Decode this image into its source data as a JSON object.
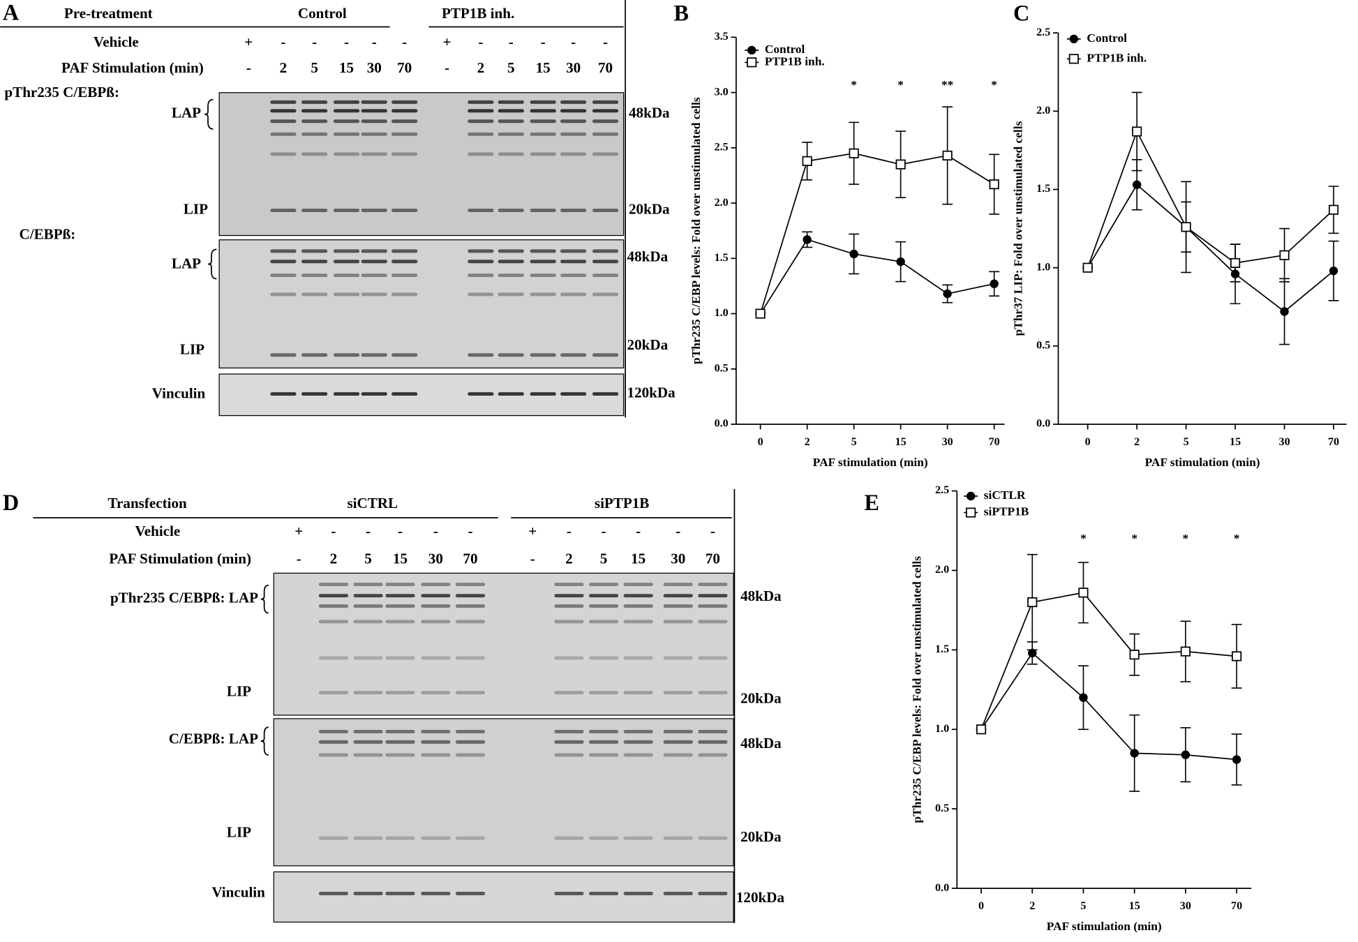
{
  "panel_a": {
    "letter": "A",
    "header": "Pre-treatment",
    "groups": [
      "Control",
      "PTP1B inh."
    ],
    "vehicle_label": "Vehicle",
    "vehicle": [
      "+",
      "-",
      "-",
      "-",
      "-",
      "-",
      "+",
      "-",
      "-",
      "-",
      "-",
      "-"
    ],
    "stimulation_label": "PAF Stimulation (min)",
    "stimulation": [
      "-",
      "2",
      "5",
      "15",
      "30",
      "70",
      "-",
      "2",
      "5",
      "15",
      "30",
      "70"
    ],
    "blot_labels": [
      "pThr235 C/EBPß:",
      "LAP",
      "LIP",
      "C/EBPß:",
      "LAP",
      "LIP",
      "Vinculin"
    ],
    "markers": [
      "48kDa",
      "20kDa",
      "48kDa",
      "20kDa",
      "120kDa"
    ]
  },
  "panel_d": {
    "letter": "D",
    "header": "Transfection",
    "groups": [
      "siCTRL",
      "siPTP1B"
    ],
    "vehicle_label": "Vehicle",
    "vehicle": [
      "+",
      "-",
      "-",
      "-",
      "-",
      "-",
      "+",
      "-",
      "-",
      "-",
      "-",
      "-"
    ],
    "stimulation_label": "PAF Stimulation (min)",
    "stimulation": [
      "-",
      "2",
      "5",
      "15",
      "30",
      "70",
      "-",
      "2",
      "5",
      "15",
      "30",
      "70"
    ],
    "blot_labels": [
      "pThr235 C/EBPß: LAP",
      "LIP",
      "C/EBPß: LAP",
      "LIP",
      "Vinculin"
    ],
    "markers": [
      "48kDa",
      "20kDa",
      "48kDa",
      "20kDa",
      "120kDa"
    ]
  },
  "chart_data": [
    {
      "type": "line",
      "panel": "B",
      "x_label": "PAF stimulation (min)",
      "y_label": "pThr235 C/EBP  levels:  Fold over unstimulated cells",
      "categories": [
        "0",
        "2",
        "5",
        "15",
        "30",
        "70"
      ],
      "legend": "upper left",
      "ylim": [
        0,
        3.5
      ],
      "yticks": [
        {
          "value": 0,
          "label": "0.0"
        },
        {
          "value": 0.5,
          "label": "0.5"
        },
        {
          "value": 1,
          "label": "1.0"
        },
        {
          "value": 1.5,
          "label": "1.5"
        },
        {
          "value": 2,
          "label": "2.0"
        },
        {
          "value": 2.5,
          "label": "2.5"
        },
        {
          "value": 3,
          "label": "3.0"
        },
        {
          "value": 3.5,
          "label": "3.5"
        }
      ],
      "series": [
        {
          "name": "Control",
          "color": "#000000",
          "marker": "circle",
          "values": [
            1.0,
            1.67,
            1.54,
            1.47,
            1.18,
            1.27
          ],
          "errors": [
            0,
            0.07,
            0.18,
            0.18,
            0.08,
            0.11
          ]
        },
        {
          "name": "PTP1B inh.",
          "color": "#000000",
          "marker": "square",
          "values": [
            1.0,
            2.38,
            2.45,
            2.35,
            2.43,
            2.17
          ],
          "errors": [
            0,
            0.17,
            0.28,
            0.3,
            0.44,
            0.27
          ]
        }
      ],
      "annotations": [
        {
          "text": "*",
          "category": "5"
        },
        {
          "text": "*",
          "category": "15"
        },
        {
          "text": "**",
          "category": "30"
        },
        {
          "text": "*",
          "category": "70"
        }
      ]
    },
    {
      "type": "line",
      "panel": "C",
      "x_label": "PAF stimulation (min)",
      "y_label": "pThr37 LIP: Fold over unstimulated cells",
      "categories": [
        "0",
        "2",
        "5",
        "15",
        "30",
        "70"
      ],
      "legend": "upper left",
      "ylim": [
        0,
        2.5
      ],
      "yticks": [
        {
          "value": 0,
          "label": "0.0"
        },
        {
          "value": 0.5,
          "label": "0.5"
        },
        {
          "value": 1,
          "label": "1.0"
        },
        {
          "value": 1.5,
          "label": "1.5"
        },
        {
          "value": 2,
          "label": "2.0"
        },
        {
          "value": 2.5,
          "label": "2.5"
        }
      ],
      "series": [
        {
          "name": "Control",
          "color": "#000000",
          "marker": "circle",
          "values": [
            1.0,
            1.53,
            1.26,
            0.96,
            0.72,
            0.98
          ],
          "errors": [
            0,
            0.16,
            0.16,
            0.19,
            0.21,
            0.19
          ]
        },
        {
          "name": "PTP1B inh.",
          "color": "#000000",
          "marker": "square",
          "values": [
            1.0,
            1.87,
            1.26,
            1.03,
            1.08,
            1.37
          ],
          "errors": [
            0,
            0.25,
            0.29,
            0.12,
            0.17,
            0.15
          ]
        }
      ]
    },
    {
      "type": "line",
      "panel": "E",
      "x_label": "PAF stimulation (min)",
      "y_label": "pThr235 C/EBP  levels:  Fold over unstimulated cells",
      "categories": [
        "0",
        "2",
        "5",
        "15",
        "30",
        "70"
      ],
      "legend": "upper left",
      "ylim": [
        0,
        2.5
      ],
      "yticks": [
        {
          "value": 0,
          "label": "0.0"
        },
        {
          "value": 0.5,
          "label": "0.5"
        },
        {
          "value": 1,
          "label": "1.0"
        },
        {
          "value": 1.5,
          "label": "1.5"
        },
        {
          "value": 2,
          "label": "2.0"
        },
        {
          "value": 2.5,
          "label": "2.5"
        }
      ],
      "series": [
        {
          "name": "siCTLR",
          "color": "#000000",
          "marker": "circle",
          "values": [
            1.0,
            1.48,
            1.2,
            0.85,
            0.84,
            0.81
          ],
          "errors": [
            0,
            0.07,
            0.2,
            0.24,
            0.17,
            0.16
          ]
        },
        {
          "name": "siPTP1B",
          "color": "#000000",
          "marker": "square",
          "values": [
            1.0,
            1.8,
            1.86,
            1.47,
            1.49,
            1.46
          ],
          "errors": [
            0,
            0.3,
            0.19,
            0.13,
            0.19,
            0.2
          ]
        }
      ],
      "annotations": [
        {
          "text": "*",
          "category": "5"
        },
        {
          "text": "*",
          "category": "15"
        },
        {
          "text": "*",
          "category": "30"
        },
        {
          "text": "*",
          "category": "70"
        }
      ]
    }
  ]
}
